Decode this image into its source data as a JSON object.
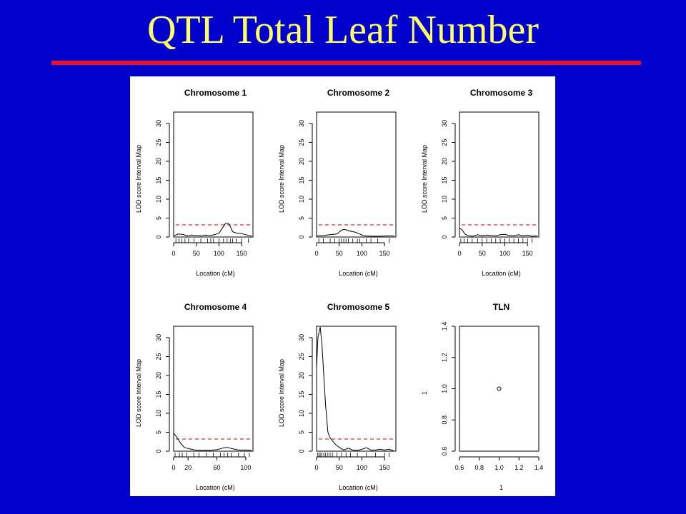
{
  "slide": {
    "title": "QTL Total Leaf Number",
    "title_color": "#ffff66",
    "background": "#0000cc",
    "rule_color": "#e8102a"
  },
  "chart_data": [
    {
      "type": "line",
      "title": "Chromosome 1",
      "xlabel": "Location (cM)",
      "ylabel": "LOD score Interval Map",
      "xlim": [
        0,
        175
      ],
      "ylim": [
        0,
        33
      ],
      "xticks": [
        0,
        50,
        100,
        150
      ],
      "yticks": [
        0,
        5,
        10,
        15,
        20,
        25,
        30
      ],
      "threshold": 3.2,
      "markers": [
        5,
        12,
        18,
        25,
        33,
        45,
        60,
        75,
        82,
        88,
        100,
        110,
        118,
        125,
        130,
        138,
        150,
        165
      ],
      "x": [
        0,
        10,
        20,
        30,
        40,
        50,
        60,
        70,
        80,
        90,
        100,
        110,
        115,
        120,
        125,
        130,
        140,
        150,
        160,
        172
      ],
      "y": [
        0.3,
        0.8,
        0.7,
        0.3,
        0.5,
        0.4,
        0.3,
        0.5,
        0.4,
        0.6,
        1.0,
        2.8,
        3.6,
        3.7,
        2.8,
        1.4,
        1.0,
        0.9,
        0.6,
        0.2
      ]
    },
    {
      "type": "line",
      "title": "Chromosome 2",
      "xlabel": "Location (cM)",
      "ylabel": "LOD score Interval Map",
      "xlim": [
        0,
        175
      ],
      "ylim": [
        0,
        33
      ],
      "xticks": [
        0,
        50,
        100,
        150
      ],
      "yticks": [
        0,
        5,
        10,
        15,
        20,
        25,
        30
      ],
      "threshold": 3.2,
      "markers": [
        5,
        15,
        30,
        40,
        50,
        55,
        60,
        65,
        70,
        80,
        90,
        95,
        110,
        120,
        135,
        160
      ],
      "x": [
        0,
        15,
        30,
        45,
        55,
        60,
        65,
        75,
        85,
        95,
        105,
        120,
        140,
        160,
        172
      ],
      "y": [
        0.3,
        0.4,
        0.6,
        0.8,
        1.8,
        2.0,
        1.9,
        1.5,
        1.3,
        0.8,
        0.3,
        0.2,
        0.2,
        0.3,
        0.3
      ]
    },
    {
      "type": "line",
      "title": "Chromosome 3",
      "xlabel": "Location (cM)",
      "ylabel": "LOD score Interval Map",
      "xlim": [
        0,
        175
      ],
      "ylim": [
        0,
        33
      ],
      "xticks": [
        0,
        50,
        100,
        150
      ],
      "yticks": [
        0,
        5,
        10,
        15,
        20,
        25,
        30
      ],
      "threshold": 3.2,
      "markers": [
        3,
        10,
        18,
        28,
        40,
        50,
        60,
        70,
        80,
        90,
        100,
        110,
        120,
        130,
        140,
        150,
        160
      ],
      "x": [
        0,
        5,
        12,
        20,
        30,
        40,
        50,
        60,
        70,
        80,
        90,
        100,
        110,
        120,
        130,
        140,
        150,
        160,
        172
      ],
      "y": [
        2.3,
        2.0,
        0.8,
        0.3,
        0.2,
        0.6,
        0.3,
        0.5,
        0.4,
        0.3,
        0.6,
        0.7,
        0.4,
        0.3,
        0.6,
        0.3,
        0.5,
        0.2,
        0.3
      ]
    },
    {
      "type": "line",
      "title": "Chromosome 4",
      "xlabel": "Location (cM)",
      "ylabel": "LOD score Interval Map",
      "xlim": [
        0,
        110
      ],
      "ylim": [
        0,
        33
      ],
      "xticks": [
        0,
        20,
        60,
        100
      ],
      "yticks": [
        0,
        5,
        10,
        15,
        20,
        25,
        30
      ],
      "threshold": 3.2,
      "markers": [
        2,
        8,
        12,
        18,
        28,
        35,
        45,
        55,
        65,
        70,
        75,
        80,
        90,
        98,
        105
      ],
      "x": [
        0,
        5,
        10,
        15,
        20,
        30,
        40,
        50,
        60,
        70,
        75,
        80,
        90,
        100,
        108
      ],
      "y": [
        4.8,
        3.5,
        2.0,
        1.0,
        0.7,
        0.3,
        0.2,
        0.2,
        0.4,
        0.9,
        1.0,
        0.7,
        0.3,
        0.3,
        0.2
      ]
    },
    {
      "type": "line",
      "title": "Chromosome 5",
      "xlabel": "Location (cM)",
      "ylabel": "LOD score Interval Map",
      "xlim": [
        0,
        175
      ],
      "ylim": [
        0,
        33
      ],
      "xticks": [
        0,
        50,
        100,
        150
      ],
      "yticks": [
        0,
        5,
        10,
        15,
        20,
        25,
        30
      ],
      "threshold": 3.2,
      "markers": [
        2,
        5,
        8,
        12,
        16,
        20,
        25,
        30,
        35,
        45,
        55,
        65,
        75,
        90,
        110,
        130,
        150,
        160
      ],
      "x": [
        0,
        3,
        8,
        12,
        16,
        20,
        25,
        30,
        40,
        50,
        60,
        70,
        80,
        90,
        100,
        110,
        120,
        130,
        140,
        150,
        160,
        170
      ],
      "y": [
        22,
        30,
        32.8,
        28,
        20,
        12,
        5,
        3.5,
        2.0,
        1.0,
        0.3,
        0.8,
        0.3,
        0.2,
        0.5,
        0.9,
        0.3,
        0.3,
        0.5,
        0.3,
        0.5,
        0.1
      ]
    },
    {
      "type": "scatter",
      "title": "TLN",
      "xlabel": "1",
      "ylabel": "1",
      "xlim": [
        0.6,
        1.4
      ],
      "ylim": [
        0.6,
        1.4
      ],
      "xticks": [
        0.6,
        0.8,
        1.0,
        1.2,
        1.4
      ],
      "yticks": [
        0.6,
        0.8,
        1.0,
        1.2,
        1.4
      ],
      "xticklabels": [
        "0.6",
        "0.8",
        "1.0",
        "1.2",
        "1.4"
      ],
      "yticklabels": [
        "0.6",
        "0.8",
        "1.0",
        "1.2",
        "1.4"
      ],
      "points": [
        {
          "x": 1.0,
          "y": 1.0
        }
      ]
    }
  ]
}
